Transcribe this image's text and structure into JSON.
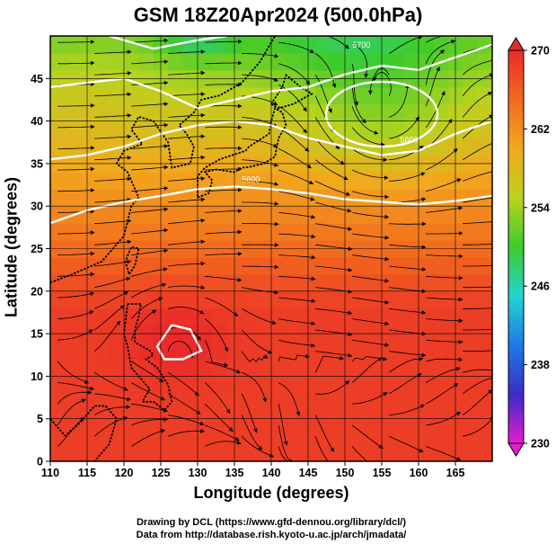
{
  "title": "GSM 18Z20Apr2024 (500.0hPa)",
  "xlabel": "Longitude (degrees)",
  "ylabel": "Latitude  (degrees)",
  "credits": {
    "line1": "Drawing by DCL (https://www.gfd-dennou.org/library/dcl/)",
    "line2": "Data from http://database.rish.kyoto-u.ac.jp/arch/jmadata/"
  },
  "chart_data": {
    "type": "heatmap",
    "xlim": [
      110,
      170
    ],
    "ylim": [
      0,
      50
    ],
    "x_ticks": [
      "110",
      "115",
      "120",
      "125",
      "130",
      "135",
      "140",
      "145",
      "150",
      "155",
      "160",
      "165"
    ],
    "y_ticks": [
      "0",
      "5",
      "10",
      "15",
      "20",
      "25",
      "30",
      "35",
      "40",
      "45"
    ],
    "grid": true,
    "colorbar": {
      "min": 230,
      "max": 270,
      "ticks": [
        "230",
        "238",
        "246",
        "254",
        "262",
        "270"
      ],
      "colors": [
        "#e81cd0",
        "#3a2cc6",
        "#1f7ae6",
        "#23d4d0",
        "#3ecb2a",
        "#b9d31e",
        "#f2a81e",
        "#f26a1e",
        "#ea2a2a"
      ]
    },
    "contour_labels": [
      "5600",
      "5600",
      "5700"
    ],
    "field": {
      "description_points": [
        {
          "lon": 155,
          "lat": 40.5,
          "kind": "low"
        },
        {
          "lon": 127,
          "lat": 14,
          "kind": "high"
        }
      ]
    }
  }
}
